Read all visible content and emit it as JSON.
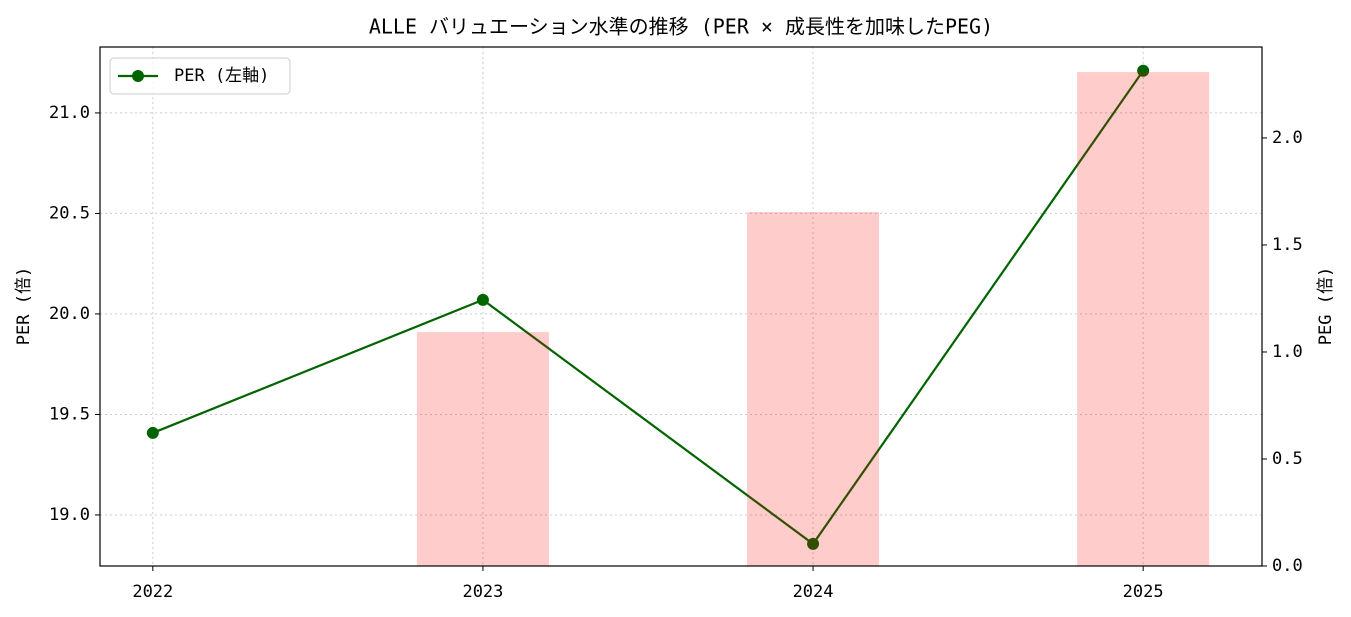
{
  "chart_data": {
    "type": "line-bar",
    "title": "ALLE バリュエーション水準の推移 (PER × 成長性を加味したPEG)",
    "ylabel": "PER (倍)",
    "y2label": "PEG (倍)",
    "categories": [
      "2022",
      "2023",
      "2024",
      "2025"
    ],
    "series": [
      {
        "name": "PER (左軸)",
        "type": "line",
        "color": "#006400",
        "values": [
          19.408,
          20.07,
          18.856,
          21.21
        ]
      },
      {
        "type": "bar",
        "axis": "y2",
        "color": "#ff0000",
        "values": [
          null,
          1.093,
          1.654,
          2.308
        ]
      }
    ],
    "ylim": [
      18.746,
      21.328
    ],
    "yticks": [
      {
        "value": 19,
        "label": "19.0"
      },
      19.5,
      {
        "value": 20,
        "label": "20.0"
      },
      20.5,
      {
        "value": 21,
        "label": "21.0"
      }
    ],
    "y2lim": [
      0,
      2.425
    ],
    "y2ticks": [
      {
        "value": 0,
        "label": "0.0"
      },
      0.5,
      {
        "value": 1,
        "label": "1.0"
      },
      1.5,
      {
        "value": 2,
        "label": "2.0"
      }
    ],
    "grid": true,
    "legend": "upper left"
  }
}
